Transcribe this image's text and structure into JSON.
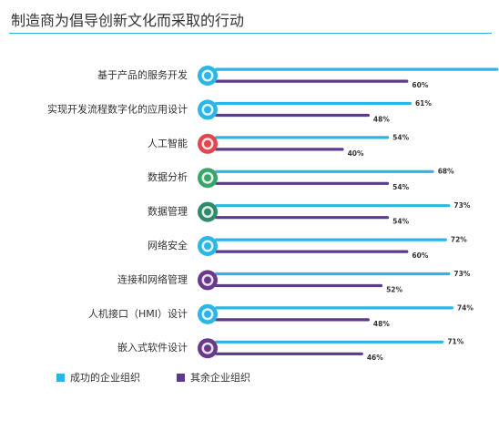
{
  "title": "制造商为倡导创新文化而采取的行动",
  "legend": {
    "series1": "成功的企业组织",
    "series2": "其余企业组织"
  },
  "colors": {
    "series1": "#2cb6e6",
    "series2": "#5b3a8e",
    "rule": "#2cb6e6"
  },
  "icons": [
    "lightbulb-icon",
    "building-grid-icon",
    "brain-icon",
    "magnifier-data-icon",
    "gear-data-icon",
    "lock-icon",
    "network-icon",
    "monitor-icon",
    "chip-icon"
  ],
  "icon_colors": [
    "#2cb6e6",
    "#2cb6e6",
    "#e0484f",
    "#3aa56b",
    "#2e8a6b",
    "#2cb6e6",
    "#6a3a8a",
    "#2cb6e6",
    "#6a3a8a"
  ],
  "chart_data": {
    "type": "bar",
    "orientation": "horizontal",
    "categories": [
      "基于产品的服务开发",
      "实现开发流程数字化的应用设计",
      "人工智能",
      "数据分析",
      "数据管理",
      "网络安全",
      "连接和网络管理",
      "人机接口（HMI）设计",
      "嵌入式软件设计"
    ],
    "series": [
      {
        "name": "成功的企业组织",
        "values": [
          88,
          61,
          54,
          68,
          73,
          72,
          73,
          74,
          71
        ]
      },
      {
        "name": "其余企业组织",
        "values": [
          60,
          48,
          40,
          54,
          54,
          60,
          52,
          48,
          46
        ]
      }
    ],
    "value_suffix": "%",
    "xlim": [
      0,
      100
    ]
  }
}
